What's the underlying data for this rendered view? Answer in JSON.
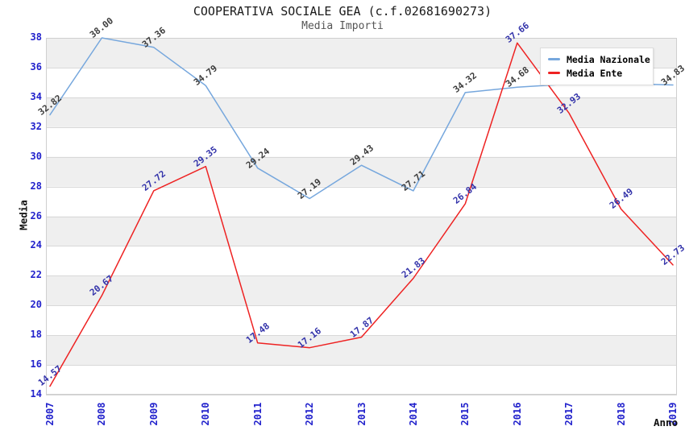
{
  "chart_data": {
    "type": "line",
    "title": "COOPERATIVA SOCIALE GEA (c.f.02681690273)",
    "subtitle": "Media Importi",
    "xlabel": "Anno",
    "ylabel": "Media",
    "categories": [
      "2007",
      "2008",
      "2009",
      "2010",
      "2011",
      "2012",
      "2013",
      "2014",
      "2015",
      "2016",
      "2017",
      "2018",
      "2019"
    ],
    "ylim": [
      14,
      38
    ],
    "y_ticks": [
      14,
      16,
      18,
      20,
      22,
      24,
      26,
      28,
      30,
      32,
      34,
      36,
      38
    ],
    "grid": true,
    "alternating_row_bands": true,
    "legend_position": "top-right",
    "series": [
      {
        "name": "Media Nazionale",
        "color": "#76a7dd",
        "label_color": "#3d3d3d",
        "values": [
          32.82,
          38.0,
          37.36,
          34.79,
          29.24,
          27.19,
          29.43,
          27.71,
          34.32,
          34.68,
          34.9,
          34.93,
          34.83
        ],
        "labels": [
          "32.82",
          "38.00",
          "37.36",
          "34.79",
          "29.24",
          "27.19",
          "29.43",
          "27.71",
          "34.32",
          "34.68",
          null,
          null,
          "34.83"
        ]
      },
      {
        "name": "Media Ente",
        "color": "#ee2222",
        "label_color": "#3333aa",
        "values": [
          14.57,
          20.67,
          27.72,
          29.35,
          17.48,
          17.16,
          17.87,
          21.83,
          26.84,
          37.66,
          32.93,
          26.49,
          22.73
        ],
        "labels": [
          "14.57",
          "20.67",
          "27.72",
          "29.35",
          "17.48",
          "17.16",
          "17.87",
          "21.83",
          "26.84",
          "37.66",
          "32.93",
          "26.49",
          "22.73"
        ]
      }
    ]
  },
  "colors": {
    "tick_label": "#2222cc",
    "grid_line": "#d8d8d8",
    "band_fill": "#efefef",
    "plot_border": "#cfcfcf"
  }
}
